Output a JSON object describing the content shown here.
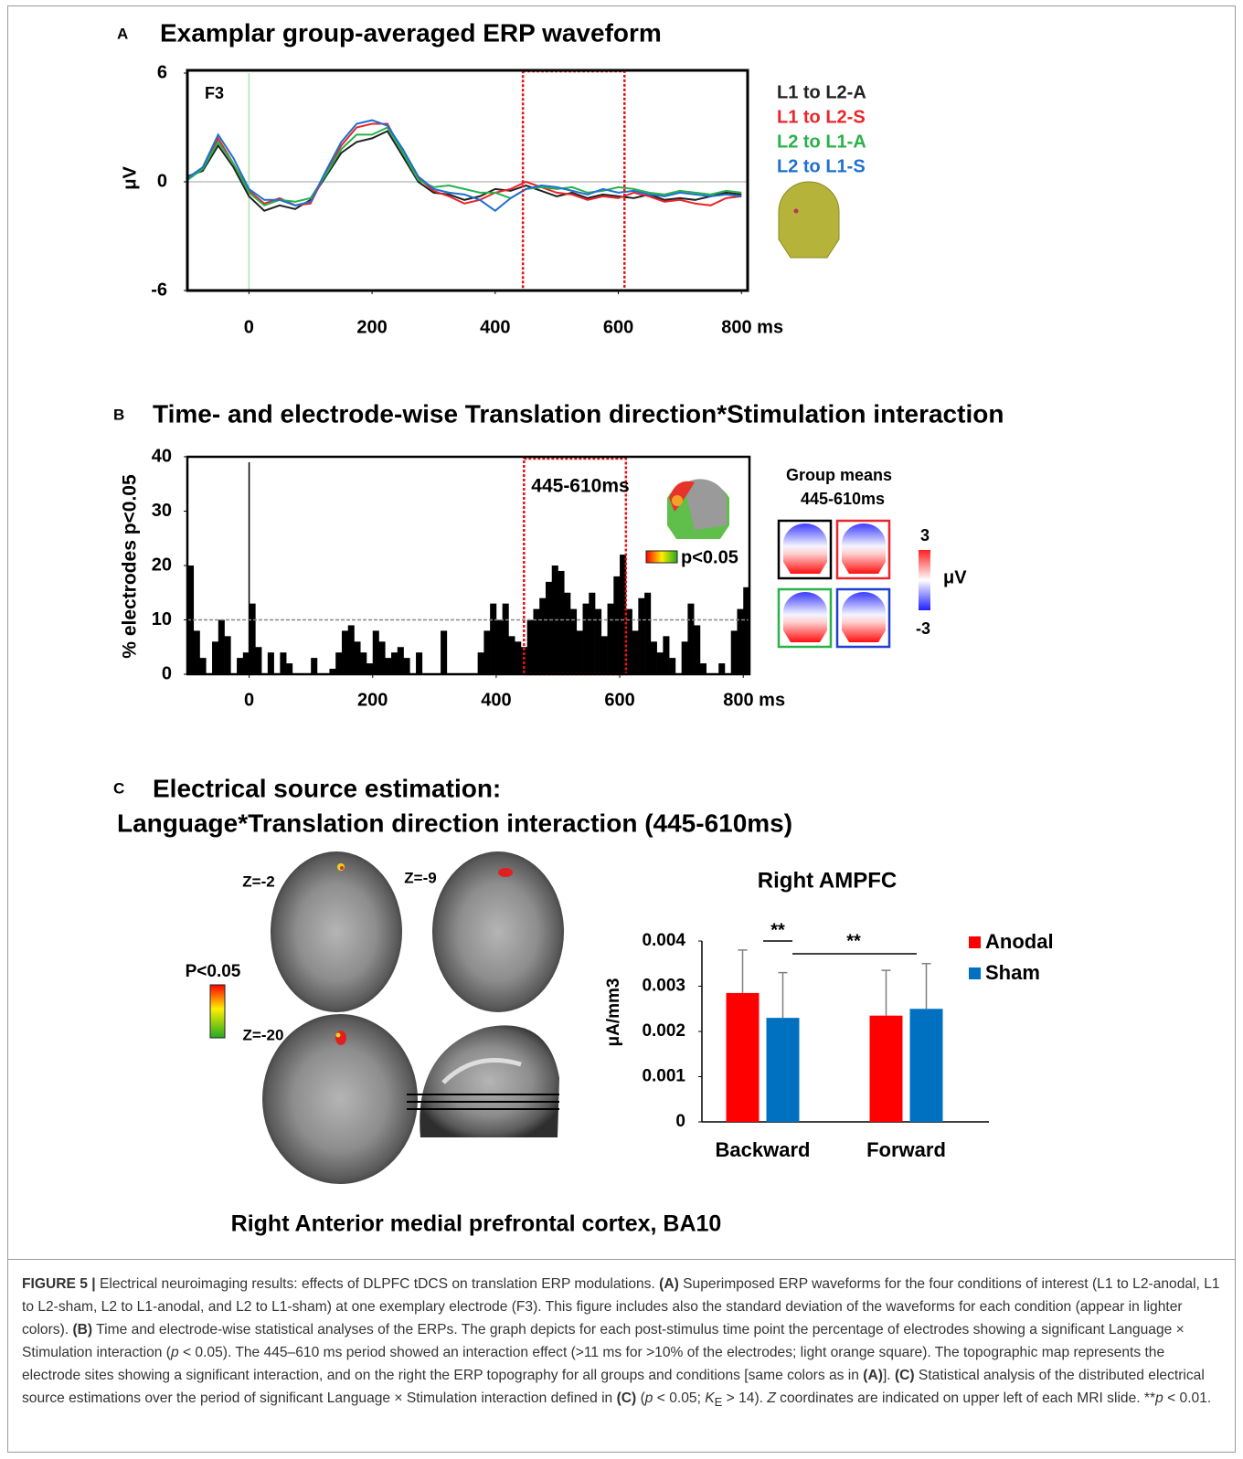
{
  "chart_data": [
    {
      "type": "line",
      "panel": "A",
      "title": "Examplar group-averaged ERP waveform",
      "electrode": "F3",
      "ylabel": "μV",
      "x": [
        -100,
        -75,
        -50,
        -25,
        0,
        25,
        50,
        75,
        100,
        125,
        150,
        175,
        200,
        225,
        250,
        275,
        300,
        325,
        350,
        375,
        400,
        425,
        450,
        475,
        500,
        525,
        550,
        575,
        600,
        625,
        650,
        675,
        700,
        725,
        750,
        775,
        800
      ],
      "series": [
        {
          "name": "L1 to L2-A",
          "color": "#222222",
          "values": [
            0.3,
            0.6,
            2.0,
            0.8,
            -0.8,
            -1.6,
            -1.3,
            -1.5,
            -1.0,
            0.3,
            1.6,
            2.2,
            2.4,
            2.8,
            1.4,
            0.0,
            -0.6,
            -0.7,
            -1.0,
            -0.8,
            -0.4,
            -0.5,
            -0.2,
            -0.5,
            -0.8,
            -0.6,
            -0.9,
            -0.7,
            -0.8,
            -0.9,
            -0.7,
            -1.0,
            -0.9,
            -1.0,
            -0.8,
            -0.6,
            -0.7
          ]
        },
        {
          "name": "L1 to L2-S",
          "color": "#e8262a",
          "values": [
            0.2,
            0.7,
            2.4,
            1.0,
            -0.5,
            -1.2,
            -0.9,
            -1.3,
            -1.2,
            0.5,
            2.0,
            3.0,
            3.2,
            3.2,
            1.6,
            0.2,
            -0.5,
            -0.8,
            -1.2,
            -1.0,
            -0.6,
            -0.4,
            0.0,
            -0.3,
            -0.6,
            -0.7,
            -1.0,
            -0.8,
            -0.9,
            -0.6,
            -0.8,
            -1.1,
            -1.0,
            -1.2,
            -1.3,
            -0.9,
            -0.8
          ]
        },
        {
          "name": "L2 to L1-A",
          "color": "#27b24a",
          "values": [
            0.1,
            0.7,
            2.2,
            1.0,
            -0.6,
            -1.3,
            -1.0,
            -1.1,
            -0.9,
            0.4,
            1.8,
            2.6,
            2.6,
            3.0,
            1.6,
            0.1,
            -0.3,
            -0.2,
            -0.4,
            -0.6,
            -0.6,
            -0.9,
            -0.4,
            -0.3,
            -0.4,
            -0.3,
            -0.6,
            -0.5,
            -0.3,
            -0.4,
            -0.6,
            -0.7,
            -0.5,
            -0.6,
            -0.7,
            -0.5,
            -0.6
          ]
        },
        {
          "name": "L2 to L1-S",
          "color": "#1f6fd1",
          "values": [
            0.2,
            0.8,
            2.6,
            1.3,
            -0.4,
            -1.0,
            -1.0,
            -1.3,
            -1.1,
            0.6,
            2.2,
            3.2,
            3.4,
            3.1,
            1.8,
            0.3,
            -0.4,
            -0.6,
            -0.7,
            -1.0,
            -1.6,
            -0.9,
            -0.4,
            -0.2,
            -0.3,
            -0.5,
            -0.7,
            -0.4,
            -0.6,
            -0.5,
            -0.7,
            -0.8,
            -0.6,
            -0.7,
            -0.8,
            -0.7,
            -0.8
          ]
        }
      ],
      "window": [
        445,
        610
      ],
      "xlim": [
        -100,
        810
      ],
      "xticks": [
        0,
        200,
        400,
        600,
        {
          "value": 800,
          "label": "800 ms"
        }
      ],
      "ylim": [
        -6,
        6
      ],
      "yticks": [
        -6,
        0,
        6
      ]
    },
    {
      "type": "histogram",
      "panel": "B",
      "title": "Time- and electrode-wise Translation direction*Stimulation interaction",
      "ylabel": "% electrodes p<0.05",
      "color": "#000000",
      "bins": [
        -100,
        -90,
        -80,
        -70,
        -60,
        -50,
        -40,
        -30,
        -20,
        -10,
        0,
        10,
        20,
        30,
        40,
        50,
        60,
        70,
        80,
        90,
        100,
        110,
        120,
        130,
        140,
        150,
        160,
        170,
        180,
        190,
        200,
        210,
        220,
        230,
        240,
        250,
        260,
        270,
        280,
        290,
        300,
        310,
        320,
        330,
        340,
        350,
        360,
        370,
        380,
        390,
        400,
        410,
        420,
        430,
        440,
        450,
        460,
        470,
        480,
        490,
        500,
        510,
        520,
        530,
        540,
        550,
        560,
        570,
        580,
        590,
        600,
        610,
        620,
        630,
        640,
        650,
        660,
        670,
        680,
        690,
        700,
        710,
        720,
        730,
        740,
        750,
        760,
        770,
        780,
        790,
        800,
        810
      ],
      "values": [
        20,
        8,
        3,
        0,
        6,
        10,
        7,
        0,
        3,
        4,
        13,
        5,
        0,
        4,
        0,
        4,
        2,
        0,
        0,
        0,
        3,
        0,
        0,
        1,
        4,
        8,
        9,
        6,
        4,
        2,
        8,
        6,
        3,
        4,
        5,
        3,
        0,
        4,
        0,
        0,
        0,
        8,
        0,
        0,
        0,
        0,
        0,
        4,
        8,
        13,
        10,
        13,
        7,
        6,
        5,
        10,
        12,
        14,
        17,
        20,
        19,
        15,
        12,
        8,
        13,
        15,
        12,
        7,
        13,
        18,
        22,
        12,
        8,
        14,
        15,
        6,
        4,
        7,
        3,
        0,
        6,
        13,
        9,
        2,
        0,
        0,
        2,
        0,
        8,
        12,
        16
      ],
      "threshold": 10,
      "window": [
        445,
        610
      ],
      "window_label": "445-610ms",
      "map_label": "p<0.05",
      "group_means": {
        "title": "Group means",
        "window": "445-610ms",
        "scale_max": 3,
        "unit": "μV",
        "scale_min": -3
      },
      "xlim": [
        -100,
        810
      ],
      "xticks": [
        0,
        200,
        400,
        600,
        {
          "value": 800,
          "label": "800 ms"
        }
      ],
      "ylim": [
        0,
        40
      ],
      "yticks": [
        0,
        10,
        20,
        30,
        40
      ]
    },
    {
      "type": "bar",
      "title": "Right AMPFC",
      "ylabel": "μA/mm3",
      "categories": [
        "Backward",
        "Forward"
      ],
      "series": [
        {
          "name": "Anodal",
          "color": "#ff0000",
          "values": [
            0.00285,
            0.00235
          ],
          "errors": [
            0.00095,
            0.001
          ]
        },
        {
          "name": "Sham",
          "color": "#0070c0",
          "values": [
            0.0023,
            0.0025
          ],
          "errors": [
            0.001,
            0.001
          ]
        }
      ],
      "annotations": [
        "**",
        "**"
      ],
      "ylim": [
        0,
        0.004
      ],
      "yticks": [
        0,
        0.001,
        0.002,
        0.003,
        0.004
      ]
    }
  ],
  "source_panel": {
    "panel": "C",
    "title": [
      "Electrical source estimation:",
      "Language*Translation direction interaction (445-610ms)"
    ],
    "slices": [
      "Z=-2",
      "Z=-9",
      "Z=-20"
    ],
    "scale_label": "P<0.05",
    "region": "Right Anterior medial prefrontal cortex, BA10"
  },
  "caption": [
    {
      "text": "FIGURE 5 | ",
      "style": "bold"
    },
    {
      "text": "Electrical neuroimaging results: effects of DLPFC tDCS on translation ERP modulations. "
    },
    {
      "text": "(A)",
      "style": "bold"
    },
    {
      "text": " Superimposed ERP waveforms for the four conditions of interest (L1 to L2-anodal, L1 to L2-sham, L2 to L1-anodal, and L2 to L1-sham) at one exemplary electrode (F3). This figure includes also the standard deviation of the waveforms for each condition (appear in lighter colors). "
    },
    {
      "text": "(B)",
      "style": "bold"
    },
    {
      "text": " Time and electrode-wise statistical analyses of the ERPs. The graph depicts for each post-stimulus time point the percentage of electrodes showing a significant Language × Stimulation interaction ("
    },
    {
      "text": "p",
      "style": "italic"
    },
    {
      "text": " < 0.05). The 445–610 ms period showed an interaction effect (>11 ms for >10% of the electrodes; light orange square). The topographic map represents the electrode sites showing a significant interaction, and on the right the ERP topography for all groups and conditions [same colors as in "
    },
    {
      "text": "(A)",
      "style": "bold"
    },
    {
      "text": "]. "
    },
    {
      "text": "(C)",
      "style": "bold"
    },
    {
      "text": " Statistical analysis of the distributed electrical source estimations over the period of significant Language × Stimulation interaction defined in "
    },
    {
      "text": "(C)",
      "style": "bold"
    },
    {
      "text": " ("
    },
    {
      "text": "p",
      "style": "italic"
    },
    {
      "text": " < 0.05; "
    },
    {
      "text": "K",
      "style": "italic"
    },
    {
      "text": "E",
      "style": "sub"
    },
    {
      "text": " > 14). "
    },
    {
      "text": "Z",
      "style": "italic"
    },
    {
      "text": " coordinates are indicated on upper left of each MRI slide. **"
    },
    {
      "text": "p",
      "style": "italic"
    },
    {
      "text": " < 0.01."
    }
  ]
}
